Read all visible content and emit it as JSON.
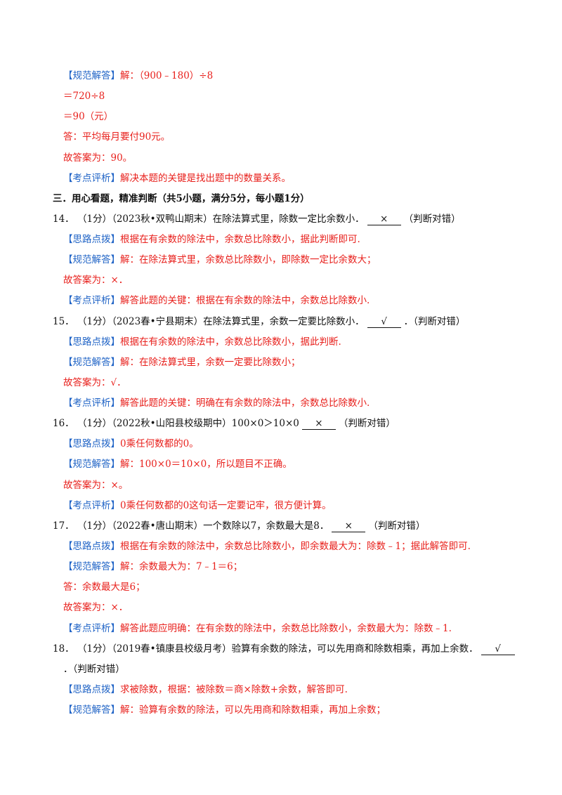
{
  "lines": [
    {
      "tag": "【规范解答】",
      "text": "解：（900﹣180）÷8"
    },
    {
      "text": "＝720÷8"
    },
    {
      "text": "＝90（元）"
    },
    {
      "text": "答：平均每月要付90元。"
    },
    {
      "text": "故答案为：90。"
    },
    {
      "tag": "【考点评析】",
      "text": "解决本题的关键是找出题中的数量关系。"
    },
    {
      "heading": "三．用心看题，精准判断（共5小题，满分5分，每小题1分）"
    },
    {
      "number": "14．",
      "question": "（1分）（2023秋•双鸭山期末）在除法算式里，除数一定比余数小．",
      "answer": "×",
      "suffix": "（判断对错）"
    },
    {
      "tag": "【思路点拨】",
      "text": "根据在有余数的除法中，余数总比除数小，据此判断即可."
    },
    {
      "tag": "【规范解答】",
      "text": "解：在除法算式里，余数总比除数小，即除数一定比余数大；"
    },
    {
      "text": "故答案为：×．"
    },
    {
      "tag": "【考点评析】",
      "text": "解答此题的关键：根据在有余数的除法中，余数总比除数小."
    },
    {
      "number": "15．",
      "question": "（1分）（2023春•宁县期末）在除法算式里，余数一定要比除数小．",
      "answer": "√",
      "suffix": "．（判断对错）"
    },
    {
      "tag": "【思路点拨】",
      "text": "根据在有余数的除法中，余数总比除数小，据此判断."
    },
    {
      "tag": "【规范解答】",
      "text": "解：在除法算式里，余数一定要比除数小；"
    },
    {
      "text": "故答案为：√．"
    },
    {
      "tag": "【考点评析】",
      "text": "解答此题的关键：明确在有余数的除法中，余数总比除数小."
    },
    {
      "number": "16．",
      "question": "（1分）（2022秋•山阳县校级期中）100×0＞10×0",
      "answer": "×",
      "suffix": "（判断对错）"
    },
    {
      "tag": "【思路点拨】",
      "text": "0乘任何数都的0。"
    },
    {
      "tag": "【规范解答】",
      "text": "解：100×0＝10×0，所以题目不正确。"
    },
    {
      "text": "故答案为：×。"
    },
    {
      "tag": "【考点评析】",
      "text": "0乘任何数都的0这句话一定要记牢，很方便计算。"
    },
    {
      "number": "17．",
      "question": "（1分）（2022春•唐山期末）一个数除以7，余数最大是8．",
      "answer": "×",
      "suffix": "（判断对错）"
    },
    {
      "tag": "【思路点拨】",
      "text": "根据在有余数的除法中，余数总比除数小，即余数最大为：除数﹣1；据此解答即可."
    },
    {
      "tag": "【规范解答】",
      "text": "解：余数最大为：7﹣1＝6；"
    },
    {
      "text": "答：余数最大是6；"
    },
    {
      "text": "故答案为：×．"
    },
    {
      "tag": "【考点评析】",
      "text": "解答此题应明确：在有余数的除法中，余数总比除数小，余数最大为：除数﹣1."
    },
    {
      "number": "18．",
      "question": "（1分）（2019春•镇康县校级月考）验算有余数的除法，可以先用商和除数相乘，再加上余数．",
      "answer": "√"
    },
    {
      "continuation": "．（判断对错）"
    },
    {
      "tag": "【思路点拨】",
      "text": "求被除数，根据：被除数＝商×除数+余数，解答即可."
    },
    {
      "tag": "【规范解答】",
      "text": "解：验算有余数的除法，可以先用商和除数相乘，再加上余数；"
    }
  ]
}
